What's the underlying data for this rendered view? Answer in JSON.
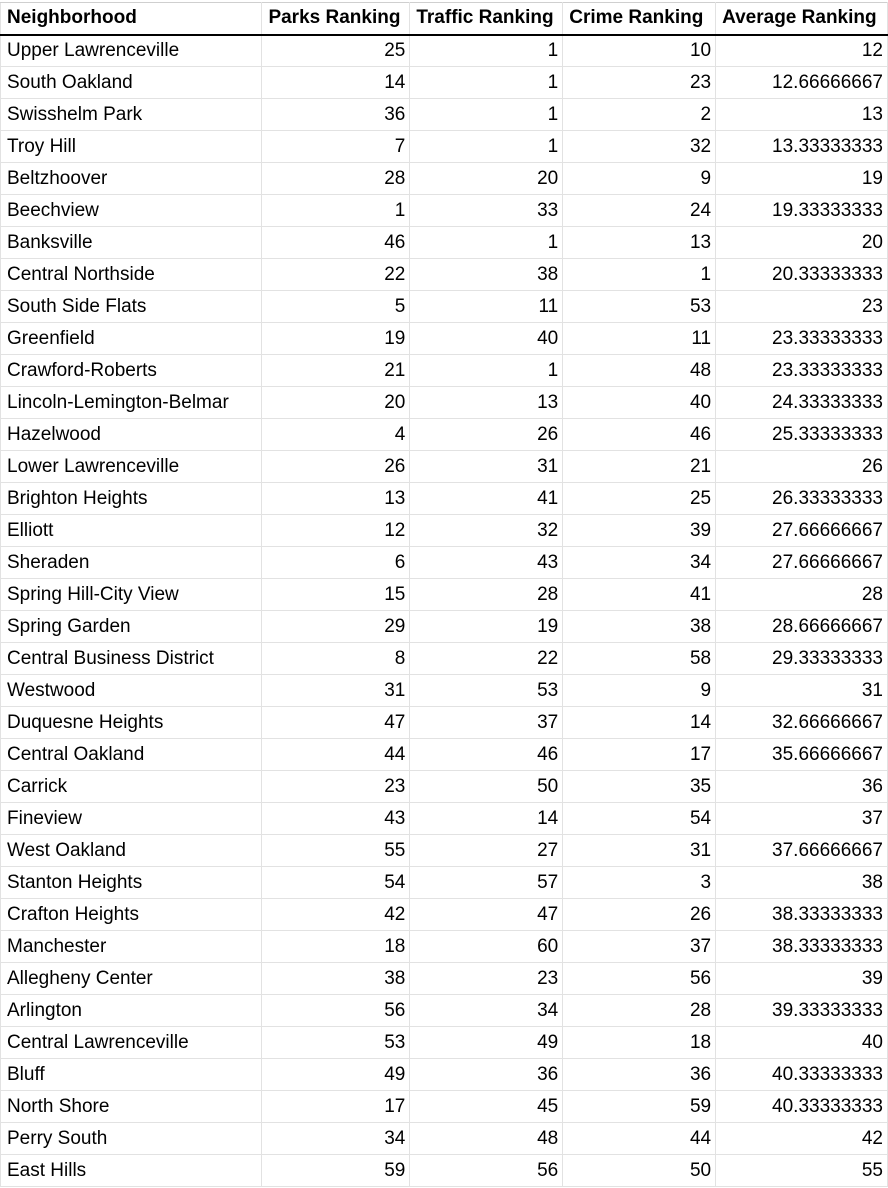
{
  "table": {
    "headers": [
      "Neighborhood",
      "Parks Ranking",
      "Traffic Ranking",
      "Crime Ranking",
      "Average Ranking"
    ],
    "rows": [
      [
        "Upper Lawrenceville",
        "25",
        "1",
        "10",
        "12"
      ],
      [
        "South Oakland",
        "14",
        "1",
        "23",
        "12.66666667"
      ],
      [
        "Swisshelm Park",
        "36",
        "1",
        "2",
        "13"
      ],
      [
        "Troy Hill",
        "7",
        "1",
        "32",
        "13.33333333"
      ],
      [
        "Beltzhoover",
        "28",
        "20",
        "9",
        "19"
      ],
      [
        "Beechview",
        "1",
        "33",
        "24",
        "19.33333333"
      ],
      [
        "Banksville",
        "46",
        "1",
        "13",
        "20"
      ],
      [
        "Central Northside",
        "22",
        "38",
        "1",
        "20.33333333"
      ],
      [
        "South Side Flats",
        "5",
        "11",
        "53",
        "23"
      ],
      [
        "Greenfield",
        "19",
        "40",
        "11",
        "23.33333333"
      ],
      [
        "Crawford-Roberts",
        "21",
        "1",
        "48",
        "23.33333333"
      ],
      [
        "Lincoln-Lemington-Belmar",
        "20",
        "13",
        "40",
        "24.33333333"
      ],
      [
        "Hazelwood",
        "4",
        "26",
        "46",
        "25.33333333"
      ],
      [
        "Lower Lawrenceville",
        "26",
        "31",
        "21",
        "26"
      ],
      [
        "Brighton Heights",
        "13",
        "41",
        "25",
        "26.33333333"
      ],
      [
        "Elliott",
        "12",
        "32",
        "39",
        "27.66666667"
      ],
      [
        "Sheraden",
        "6",
        "43",
        "34",
        "27.66666667"
      ],
      [
        "Spring Hill-City View",
        "15",
        "28",
        "41",
        "28"
      ],
      [
        "Spring Garden",
        "29",
        "19",
        "38",
        "28.66666667"
      ],
      [
        "Central Business District",
        "8",
        "22",
        "58",
        "29.33333333"
      ],
      [
        "Westwood",
        "31",
        "53",
        "9",
        "31"
      ],
      [
        "Duquesne Heights",
        "47",
        "37",
        "14",
        "32.66666667"
      ],
      [
        "Central Oakland",
        "44",
        "46",
        "17",
        "35.66666667"
      ],
      [
        "Carrick",
        "23",
        "50",
        "35",
        "36"
      ],
      [
        "Fineview",
        "43",
        "14",
        "54",
        "37"
      ],
      [
        "West Oakland",
        "55",
        "27",
        "31",
        "37.66666667"
      ],
      [
        "Stanton Heights",
        "54",
        "57",
        "3",
        "38"
      ],
      [
        "Crafton Heights",
        "42",
        "47",
        "26",
        "38.33333333"
      ],
      [
        "Manchester",
        "18",
        "60",
        "37",
        "38.33333333"
      ],
      [
        "Allegheny Center",
        "38",
        "23",
        "56",
        "39"
      ],
      [
        "Arlington",
        "56",
        "34",
        "28",
        "39.33333333"
      ],
      [
        "Central Lawrenceville",
        "53",
        "49",
        "18",
        "40"
      ],
      [
        "Bluff",
        "49",
        "36",
        "36",
        "40.33333333"
      ],
      [
        "North Shore",
        "17",
        "45",
        "59",
        "40.33333333"
      ],
      [
        "Perry South",
        "34",
        "48",
        "44",
        "42"
      ],
      [
        "East Hills",
        "59",
        "56",
        "50",
        "55"
      ]
    ]
  }
}
